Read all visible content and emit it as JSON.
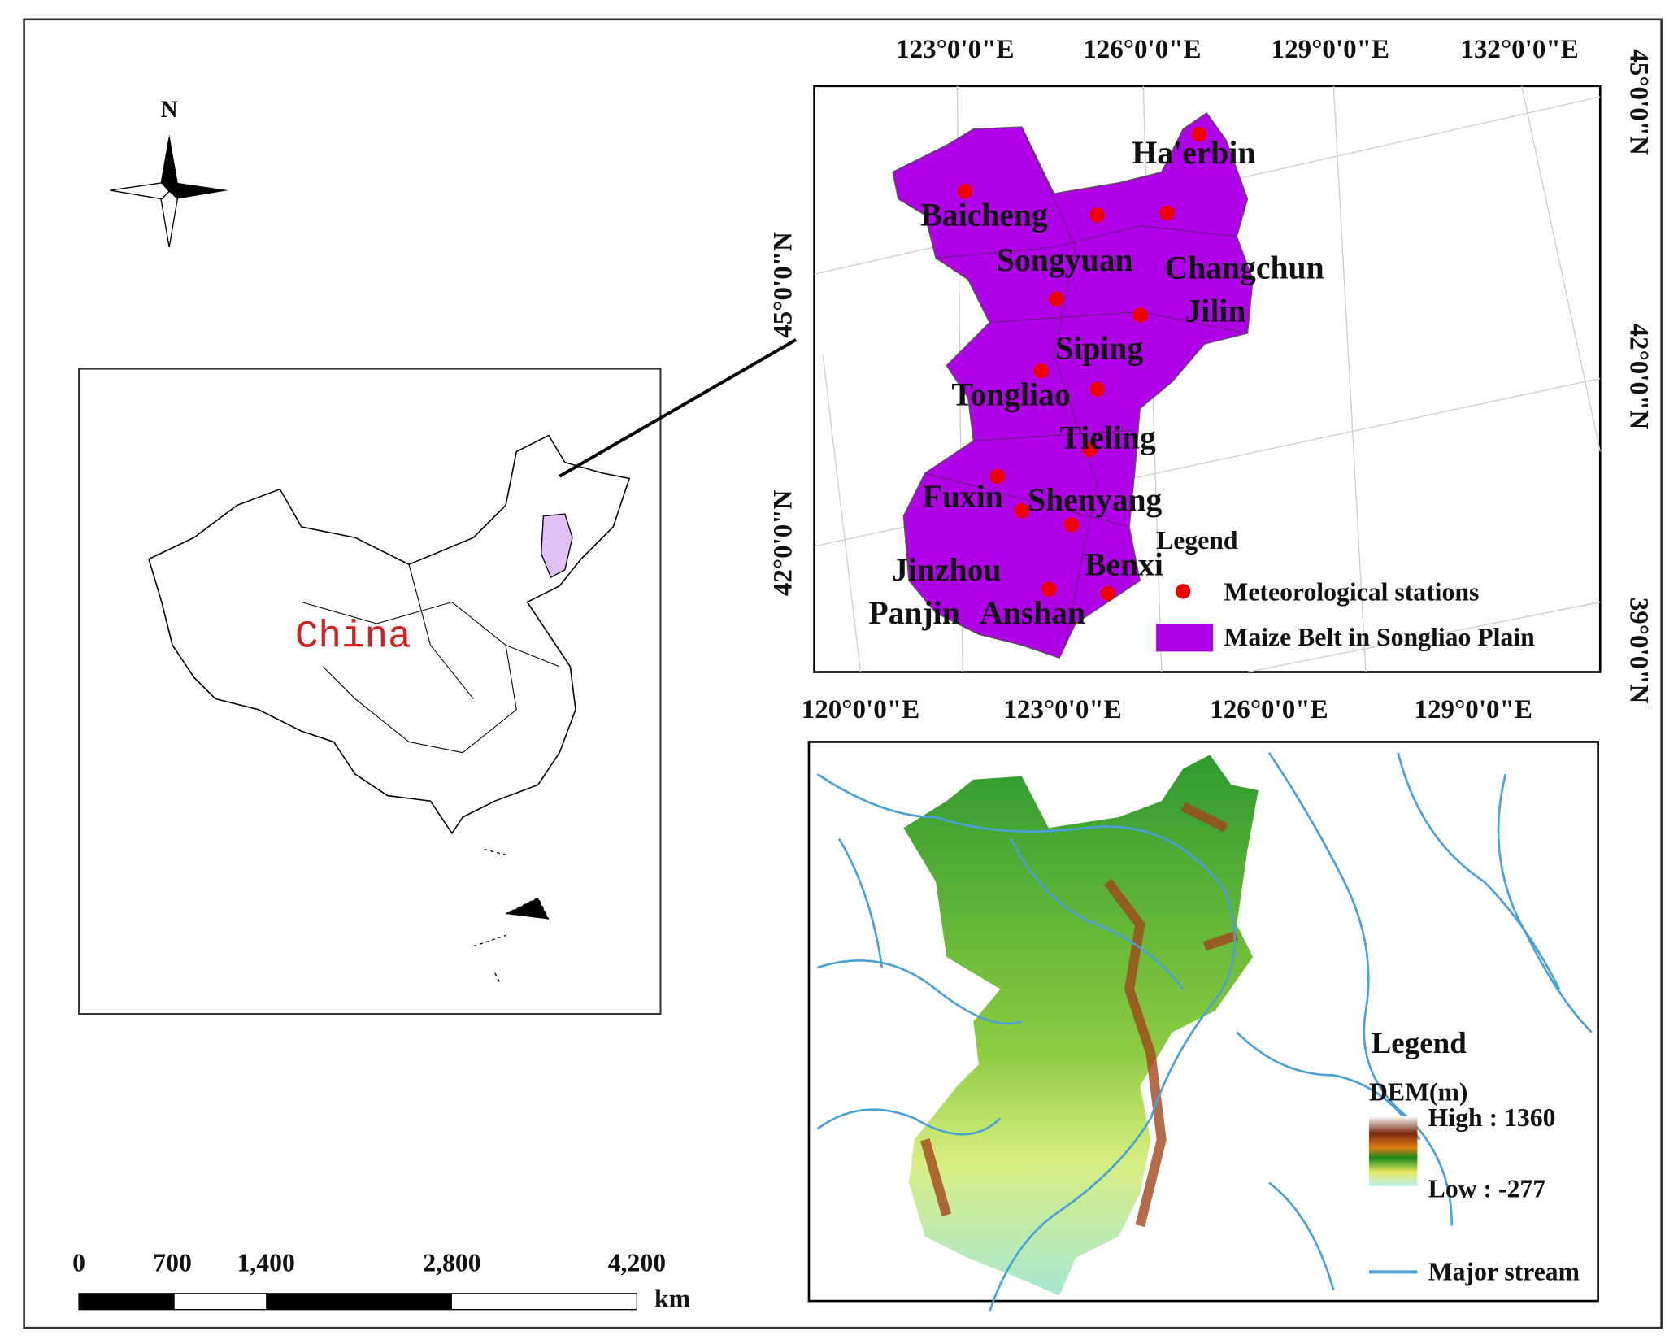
{
  "north_arrow": "N",
  "china_map": {
    "label": "China"
  },
  "scale_bar": {
    "labels": [
      "0",
      "700",
      "1,400",
      "2,800",
      "4,200"
    ],
    "unit": "km"
  },
  "station_map": {
    "top_ticks": [
      "123°0'0\"E",
      "126°0'0\"E",
      "129°0'0\"E",
      "132°0'0\"E"
    ],
    "bottom_ticks": [
      "120°0'0\"E",
      "123°0'0\"E",
      "126°0'0\"E",
      "129°0'0\"E"
    ],
    "left_ticks": [
      "45°0'0\"N",
      "42°0'0\"N"
    ],
    "right_ticks": [
      "45°0'0\"N",
      "42°0'0\"N",
      "39°0'0\"N"
    ],
    "cities": [
      "Ha'erbin",
      "Baicheng",
      "Songyuan",
      "Changchun",
      "Jilin",
      "Siping",
      "Tongliao",
      "Tieling",
      "Fuxin",
      "Shenyang",
      "Benxi",
      "Jinzhou",
      "Panjin",
      "Anshan"
    ],
    "legend": {
      "title": "Legend",
      "items": [
        "Meteorological stations",
        "Maize Belt in Songliao Plain"
      ]
    }
  },
  "dem_map": {
    "legend": {
      "title": "Legend",
      "dem": "DEM(m)",
      "high": "High : 1360",
      "low": "Low : -277",
      "stream": "Major stream"
    }
  }
}
